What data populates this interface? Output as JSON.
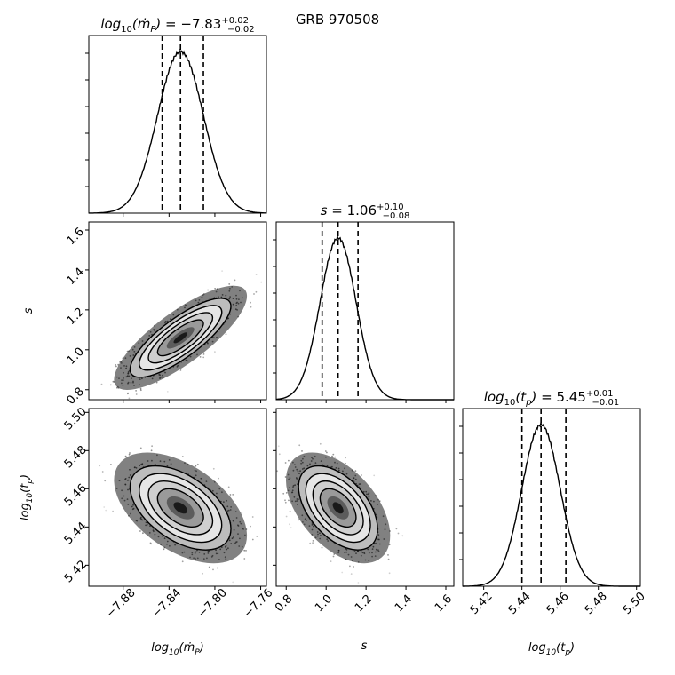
{
  "figure": {
    "suptitle": "GRB 970508"
  },
  "chart_data": {
    "type": "corner",
    "title": "GRB 970508",
    "parameters": [
      {
        "key": "mdot",
        "axis_label": "log10(ṁP)",
        "title": "log10(ṁP) = −7.83 +0.02 −0.02",
        "median": -7.83,
        "err_plus": 0.02,
        "err_minus": 0.02,
        "quantiles": [
          -7.846,
          -7.83,
          -7.81
        ],
        "range": [
          -7.91,
          -7.755
        ],
        "ticks": [
          -7.88,
          -7.84,
          -7.8,
          -7.76
        ],
        "tick_labels": [
          "−7.88",
          "−7.84",
          "−7.80",
          "−7.76"
        ]
      },
      {
        "key": "s",
        "axis_label": "s",
        "title": "s = 1.06 +0.10 −0.08",
        "median": 1.06,
        "err_plus": 0.1,
        "err_minus": 0.08,
        "quantiles": [
          0.98,
          1.06,
          1.16
        ],
        "range": [
          0.75,
          1.64
        ],
        "ticks": [
          0.8,
          1.0,
          1.2,
          1.4,
          1.6
        ],
        "tick_labels": [
          "0.8",
          "1.0",
          "1.2",
          "1.4",
          "1.6"
        ]
      },
      {
        "key": "tp",
        "axis_label": "log10(tp)",
        "title": "log10(tp) = 5.45 +0.01 −0.01",
        "median": 5.45,
        "err_plus": 0.01,
        "err_minus": 0.01,
        "quantiles": [
          5.44,
          5.45,
          5.463
        ],
        "range": [
          5.409,
          5.502
        ],
        "ticks": [
          5.42,
          5.44,
          5.46,
          5.48,
          5.5
        ],
        "tick_labels": [
          "5.42",
          "5.44",
          "5.46",
          "5.48",
          "5.50"
        ]
      }
    ],
    "correlations": {
      "mdot_s": 0.8,
      "mdot_tp": -0.5,
      "s_tp": -0.5
    },
    "grid": false,
    "colors": {
      "ink": "#000000",
      "contour_fill": "#ffffff",
      "points": "#333333"
    }
  }
}
